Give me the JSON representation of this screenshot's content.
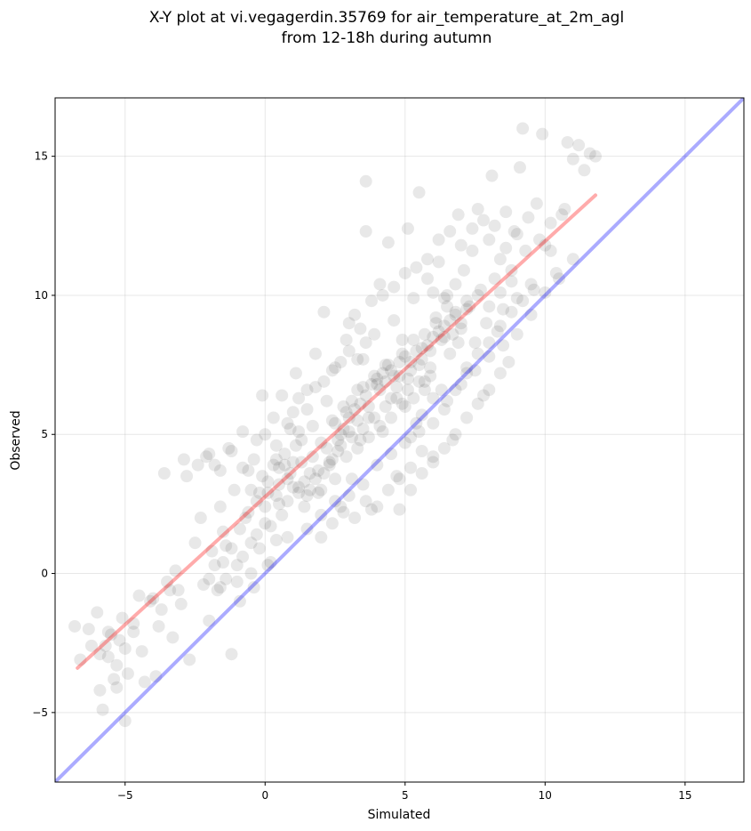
{
  "chart_data": {
    "type": "scatter",
    "title_line1": "X-Y plot at vi.vegagerdin.35769 for air_temperature_at_2m_agl",
    "title_line2": "from 12-18h during autumn",
    "xlabel": "Simulated",
    "ylabel": "Observed",
    "xlim": [
      -7.5,
      17.1
    ],
    "ylim": [
      -7.5,
      17.1
    ],
    "xticks": [
      -5,
      0,
      5,
      10,
      15
    ],
    "yticks": [
      -5,
      0,
      5,
      10,
      15
    ],
    "xtick_labels": [
      "−5",
      "0",
      "5",
      "10",
      "15"
    ],
    "ytick_labels": [
      "−5",
      "0",
      "5",
      "10",
      "15"
    ],
    "grid": true,
    "point_color": "#000000",
    "point_alpha": 0.09,
    "identity_line": {
      "x": [
        -7.5,
        17.1
      ],
      "y": [
        -7.5,
        17.1
      ],
      "color": "#0000ff"
    },
    "fit_line": {
      "x": [
        -6.7,
        11.8
      ],
      "y": [
        -3.4,
        13.6
      ],
      "color": "#ff0000"
    },
    "points": [
      [
        -6.8,
        -1.9
      ],
      [
        -6.6,
        -3.1
      ],
      [
        -6.3,
        -2.0
      ],
      [
        -6.0,
        -1.4
      ],
      [
        -5.9,
        -4.2
      ],
      [
        -5.8,
        -4.9
      ],
      [
        -5.7,
        -2.6
      ],
      [
        -5.6,
        -3.0
      ],
      [
        -5.5,
        -2.2
      ],
      [
        -5.4,
        -3.8
      ],
      [
        -5.3,
        -4.1
      ],
      [
        -5.2,
        -2.4
      ],
      [
        -5.1,
        -1.6
      ],
      [
        -5.0,
        -5.3
      ],
      [
        -4.9,
        -3.6
      ],
      [
        -4.7,
        -2.1
      ],
      [
        -4.5,
        -0.8
      ],
      [
        -4.3,
        -3.9
      ],
      [
        -4.1,
        -1.0
      ],
      [
        -3.9,
        -3.7
      ],
      [
        -3.7,
        -1.3
      ],
      [
        -3.6,
        3.6
      ],
      [
        -3.5,
        -0.3
      ],
      [
        -3.3,
        -2.3
      ],
      [
        -3.2,
        0.1
      ],
      [
        -3.1,
        -0.6
      ],
      [
        -3.0,
        -1.1
      ],
      [
        -2.9,
        4.1
      ],
      [
        -2.8,
        3.5
      ],
      [
        -2.7,
        -3.1
      ],
      [
        -2.5,
        1.1
      ],
      [
        -2.3,
        2.0
      ],
      [
        -2.2,
        -0.4
      ],
      [
        -2.1,
        4.2
      ],
      [
        -2.0,
        -1.7
      ],
      [
        -1.9,
        0.8
      ],
      [
        -1.8,
        3.9
      ],
      [
        -1.7,
        -0.6
      ],
      [
        -1.6,
        2.4
      ],
      [
        -1.5,
        1.5
      ],
      [
        -1.4,
        -0.2
      ],
      [
        -1.3,
        4.5
      ],
      [
        -1.2,
        -2.9
      ],
      [
        -1.1,
        3.0
      ],
      [
        -1.0,
        0.3
      ],
      [
        -0.9,
        -1.0
      ],
      [
        -0.8,
        5.1
      ],
      [
        -0.7,
        2.0
      ],
      [
        -0.6,
        3.7
      ],
      [
        -0.5,
        1.1
      ],
      [
        -0.4,
        -0.5
      ],
      [
        -0.3,
        4.8
      ],
      [
        -0.2,
        2.9
      ],
      [
        -0.1,
        6.4
      ],
      [
        0.0,
        1.8
      ],
      [
        0.1,
        3.3
      ],
      [
        0.2,
        0.4
      ],
      [
        0.3,
        5.6
      ],
      [
        0.4,
        4.1
      ],
      [
        0.5,
        2.5
      ],
      [
        0.6,
        6.4
      ],
      [
        0.7,
        3.9
      ],
      [
        0.8,
        1.3
      ],
      [
        0.9,
        5.2
      ],
      [
        1.0,
        4.0
      ],
      [
        1.1,
        7.2
      ],
      [
        1.2,
        3.1
      ],
      [
        1.3,
        4.8
      ],
      [
        1.4,
        2.4
      ],
      [
        1.5,
        6.6
      ],
      [
        1.6,
        3.6
      ],
      [
        1.7,
        5.3
      ],
      [
        1.8,
        7.9
      ],
      [
        1.9,
        2.9
      ],
      [
        2.0,
        4.7
      ],
      [
        2.1,
        9.4
      ],
      [
        2.2,
        6.2
      ],
      [
        2.3,
        3.9
      ],
      [
        2.4,
        5.5
      ],
      [
        2.5,
        7.4
      ],
      [
        2.6,
        4.4
      ],
      [
        2.7,
        2.4
      ],
      [
        2.8,
        6.0
      ],
      [
        2.9,
        8.4
      ],
      [
        3.0,
        5.1
      ],
      [
        3.1,
        3.4
      ],
      [
        3.2,
        9.3
      ],
      [
        3.3,
        6.6
      ],
      [
        3.4,
        4.8
      ],
      [
        3.5,
        7.7
      ],
      [
        3.6,
        12.3
      ],
      [
        3.6,
        14.1
      ],
      [
        3.7,
        5.6
      ],
      [
        3.8,
        2.3
      ],
      [
        3.9,
        8.6
      ],
      [
        4.0,
        6.8
      ],
      [
        4.1,
        10.4
      ],
      [
        4.2,
        5.1
      ],
      [
        4.3,
        7.5
      ],
      [
        4.4,
        11.9
      ],
      [
        4.5,
        6.3
      ],
      [
        4.6,
        9.1
      ],
      [
        4.7,
        3.5
      ],
      [
        4.8,
        7.1
      ],
      [
        4.9,
        8.4
      ],
      [
        5.0,
        6.0
      ],
      [
        5.1,
        12.4
      ],
      [
        5.2,
        7.6
      ],
      [
        5.3,
        9.9
      ],
      [
        5.4,
        5.4
      ],
      [
        5.5,
        13.7
      ],
      [
        5.6,
        8.1
      ],
      [
        5.7,
        6.9
      ],
      [
        5.8,
        10.6
      ],
      [
        5.9,
        7.4
      ],
      [
        6.0,
        4.2
      ],
      [
        6.1,
        9.0
      ],
      [
        6.2,
        11.2
      ],
      [
        6.3,
        6.6
      ],
      [
        6.4,
        8.5
      ],
      [
        6.5,
        10.0
      ],
      [
        6.6,
        7.9
      ],
      [
        6.7,
        4.8
      ],
      [
        6.8,
        9.4
      ],
      [
        6.9,
        12.9
      ],
      [
        7.0,
        8.8
      ],
      [
        7.1,
        10.9
      ],
      [
        7.2,
        7.2
      ],
      [
        7.3,
        9.6
      ],
      [
        7.4,
        11.6
      ],
      [
        7.5,
        8.3
      ],
      [
        7.6,
        13.1
      ],
      [
        7.7,
        10.2
      ],
      [
        7.8,
        6.4
      ],
      [
        7.9,
        9.0
      ],
      [
        8.0,
        12.0
      ],
      [
        8.1,
        14.3
      ],
      [
        8.2,
        10.6
      ],
      [
        8.3,
        8.7
      ],
      [
        8.4,
        11.3
      ],
      [
        8.5,
        9.5
      ],
      [
        8.6,
        13.0
      ],
      [
        8.7,
        7.6
      ],
      [
        8.8,
        10.9
      ],
      [
        8.9,
        12.3
      ],
      [
        9.0,
        9.9
      ],
      [
        9.1,
        14.6
      ],
      [
        9.2,
        16.0
      ],
      [
        9.3,
        11.6
      ],
      [
        9.5,
        10.4
      ],
      [
        9.7,
        13.3
      ],
      [
        9.9,
        15.8
      ],
      [
        10.0,
        11.8
      ],
      [
        10.2,
        12.6
      ],
      [
        10.4,
        10.8
      ],
      [
        10.7,
        13.1
      ],
      [
        10.8,
        15.5
      ],
      [
        11.0,
        14.9
      ],
      [
        11.2,
        15.4
      ],
      [
        11.4,
        14.5
      ],
      [
        11.6,
        15.1
      ],
      [
        11.8,
        15.0
      ],
      [
        0.5,
        3.8
      ],
      [
        0.8,
        3.4
      ],
      [
        1.0,
        3.1
      ],
      [
        1.2,
        2.9
      ],
      [
        1.4,
        3.3
      ],
      [
        1.6,
        3.0
      ],
      [
        1.8,
        3.4
      ],
      [
        2.0,
        3.0
      ],
      [
        1.5,
        2.8
      ],
      [
        1.9,
        3.7
      ],
      [
        1.7,
        4.2
      ],
      [
        2.2,
        4.5
      ],
      [
        2.4,
        4.1
      ],
      [
        2.6,
        4.8
      ],
      [
        2.8,
        5.2
      ],
      [
        3.0,
        5.6
      ],
      [
        3.2,
        5.9
      ],
      [
        3.4,
        6.1
      ],
      [
        3.6,
        6.4
      ],
      [
        3.8,
        6.8
      ],
      [
        4.0,
        7.0
      ],
      [
        4.2,
        7.2
      ],
      [
        4.4,
        7.5
      ],
      [
        4.6,
        7.1
      ],
      [
        4.8,
        7.6
      ],
      [
        5.0,
        7.8
      ],
      [
        5.2,
        7.3
      ],
      [
        5.4,
        8.0
      ],
      [
        5.6,
        7.7
      ],
      [
        5.8,
        8.2
      ],
      [
        6.0,
        8.5
      ],
      [
        6.2,
        8.7
      ],
      [
        6.4,
        8.9
      ],
      [
        6.6,
        9.1
      ],
      [
        6.8,
        9.3
      ],
      [
        7.0,
        9.0
      ],
      [
        7.2,
        9.5
      ],
      [
        6.5,
        9.6
      ],
      [
        6.7,
        8.6
      ],
      [
        6.9,
        8.3
      ],
      [
        2.5,
        5.4
      ],
      [
        2.7,
        5.0
      ],
      [
        2.9,
        5.8
      ],
      [
        3.1,
        6.2
      ],
      [
        3.3,
        5.5
      ],
      [
        3.5,
        6.7
      ],
      [
        3.7,
        6.0
      ],
      [
        3.9,
        7.1
      ],
      [
        4.1,
        6.6
      ],
      [
        4.3,
        6.9
      ],
      [
        4.5,
        7.3
      ],
      [
        4.7,
        6.7
      ],
      [
        4.9,
        7.9
      ],
      [
        5.1,
        7.0
      ],
      [
        5.3,
        8.4
      ],
      [
        5.5,
        7.5
      ],
      [
        5.7,
        8.6
      ],
      [
        5.9,
        8.0
      ],
      [
        6.1,
        9.2
      ],
      [
        6.3,
        8.4
      ],
      [
        -0.5,
        3.0
      ],
      [
        -0.3,
        2.6
      ],
      [
        -0.1,
        3.5
      ],
      [
        0.1,
        2.9
      ],
      [
        0.3,
        3.9
      ],
      [
        0.5,
        3.2
      ],
      [
        0.7,
        4.3
      ],
      [
        0.9,
        3.6
      ],
      [
        1.1,
        4.6
      ],
      [
        1.3,
        4.0
      ],
      [
        -1.5,
        0.4
      ],
      [
        -1.2,
        0.9
      ],
      [
        -0.9,
        1.6
      ],
      [
        -0.6,
        2.2
      ],
      [
        -0.3,
        1.4
      ],
      [
        0.0,
        2.4
      ],
      [
        0.2,
        1.7
      ],
      [
        0.4,
        2.8
      ],
      [
        0.6,
        2.1
      ],
      [
        0.8,
        2.6
      ],
      [
        -2.0,
        -0.2
      ],
      [
        -1.8,
        0.3
      ],
      [
        -1.6,
        -0.5
      ],
      [
        -1.4,
        1.0
      ],
      [
        -1.0,
        -0.3
      ],
      [
        -0.8,
        0.6
      ],
      [
        -0.5,
        0.0
      ],
      [
        -0.2,
        0.9
      ],
      [
        0.1,
        0.3
      ],
      [
        0.4,
        1.2
      ],
      [
        -6.2,
        -2.6
      ],
      [
        -5.9,
        -2.9
      ],
      [
        -5.6,
        -2.1
      ],
      [
        -5.3,
        -3.3
      ],
      [
        -5.0,
        -2.7
      ],
      [
        -4.7,
        -1.8
      ],
      [
        -4.4,
        -2.8
      ],
      [
        -4.0,
        -0.9
      ],
      [
        -3.8,
        -1.9
      ],
      [
        -3.4,
        -0.6
      ],
      [
        1.5,
        1.6
      ],
      [
        2.0,
        2.1
      ],
      [
        2.5,
        2.6
      ],
      [
        3.0,
        2.8
      ],
      [
        3.5,
        3.2
      ],
      [
        4.0,
        3.9
      ],
      [
        4.5,
        4.3
      ],
      [
        5.0,
        4.7
      ],
      [
        5.5,
        5.1
      ],
      [
        6.0,
        5.4
      ],
      [
        6.5,
        6.2
      ],
      [
        7.0,
        6.8
      ],
      [
        7.5,
        7.3
      ],
      [
        8.0,
        7.8
      ],
      [
        8.5,
        8.2
      ],
      [
        9.0,
        8.6
      ],
      [
        9.5,
        9.3
      ],
      [
        10.0,
        10.1
      ],
      [
        10.5,
        10.6
      ],
      [
        11.0,
        11.3
      ],
      [
        3.0,
        9.0
      ],
      [
        3.4,
        8.8
      ],
      [
        3.8,
        9.8
      ],
      [
        4.2,
        10.0
      ],
      [
        4.6,
        10.3
      ],
      [
        5.0,
        10.8
      ],
      [
        5.4,
        11.0
      ],
      [
        5.8,
        11.3
      ],
      [
        6.2,
        12.0
      ],
      [
        6.6,
        12.3
      ],
      [
        7.0,
        11.8
      ],
      [
        7.4,
        12.4
      ],
      [
        7.8,
        12.7
      ],
      [
        8.2,
        12.5
      ],
      [
        8.6,
        11.7
      ],
      [
        9.0,
        12.2
      ],
      [
        9.4,
        12.8
      ],
      [
        9.8,
        12.0
      ],
      [
        10.2,
        11.6
      ],
      [
        10.6,
        12.9
      ],
      [
        5.2,
        4.9
      ],
      [
        5.6,
        5.7
      ],
      [
        6.0,
        6.3
      ],
      [
        6.4,
        5.9
      ],
      [
        6.8,
        6.6
      ],
      [
        7.2,
        7.4
      ],
      [
        7.6,
        7.9
      ],
      [
        8.0,
        8.3
      ],
      [
        8.4,
        8.9
      ],
      [
        8.8,
        9.4
      ],
      [
        9.2,
        9.8
      ],
      [
        9.6,
        10.2
      ],
      [
        8.0,
        9.6
      ],
      [
        8.4,
        10.1
      ],
      [
        8.8,
        10.5
      ],
      [
        7.6,
        10.0
      ],
      [
        7.2,
        9.8
      ],
      [
        6.8,
        10.4
      ],
      [
        6.4,
        9.9
      ],
      [
        6.0,
        10.1
      ],
      [
        2.1,
        3.6
      ],
      [
        2.3,
        4.0
      ],
      [
        2.5,
        3.4
      ],
      [
        2.7,
        4.6
      ],
      [
        2.9,
        4.2
      ],
      [
        3.1,
        4.9
      ],
      [
        3.3,
        4.5
      ],
      [
        3.5,
        5.2
      ],
      [
        3.7,
        4.9
      ],
      [
        3.9,
        5.6
      ],
      [
        4.1,
        5.3
      ],
      [
        4.3,
        6.0
      ],
      [
        4.5,
        5.6
      ],
      [
        4.7,
        6.3
      ],
      [
        4.9,
        6.1
      ],
      [
        5.1,
        6.6
      ],
      [
        5.3,
        6.3
      ],
      [
        5.5,
        6.9
      ],
      [
        5.7,
        6.6
      ],
      [
        5.9,
        7.1
      ],
      [
        1.0,
        5.8
      ],
      [
        1.2,
        6.3
      ],
      [
        1.5,
        5.9
      ],
      [
        1.8,
        6.7
      ],
      [
        2.1,
        6.9
      ],
      [
        2.4,
        7.3
      ],
      [
        2.7,
        7.6
      ],
      [
        3.0,
        8.0
      ],
      [
        3.3,
        7.7
      ],
      [
        3.6,
        8.3
      ],
      [
        -2.4,
        3.9
      ],
      [
        -2.0,
        4.3
      ],
      [
        -1.6,
        3.7
      ],
      [
        -1.2,
        4.4
      ],
      [
        -0.8,
        3.8
      ],
      [
        -0.4,
        4.1
      ],
      [
        0.0,
        5.0
      ],
      [
        0.4,
        4.6
      ],
      [
        0.8,
        5.4
      ],
      [
        1.2,
        5.1
      ],
      [
        4.8,
        2.3
      ],
      [
        5.2,
        3.0
      ],
      [
        5.6,
        3.6
      ],
      [
        6.0,
        4.0
      ],
      [
        6.4,
        4.5
      ],
      [
        6.8,
        5.0
      ],
      [
        7.2,
        5.6
      ],
      [
        7.6,
        6.1
      ],
      [
        8.0,
        6.6
      ],
      [
        8.4,
        7.2
      ],
      [
        2.0,
        1.3
      ],
      [
        2.4,
        1.8
      ],
      [
        2.8,
        2.2
      ],
      [
        3.2,
        2.0
      ],
      [
        3.6,
        2.6
      ],
      [
        4.0,
        2.4
      ],
      [
        4.4,
        3.0
      ],
      [
        4.8,
        3.4
      ],
      [
        5.2,
        3.8
      ],
      [
        5.6,
        4.4
      ]
    ]
  }
}
